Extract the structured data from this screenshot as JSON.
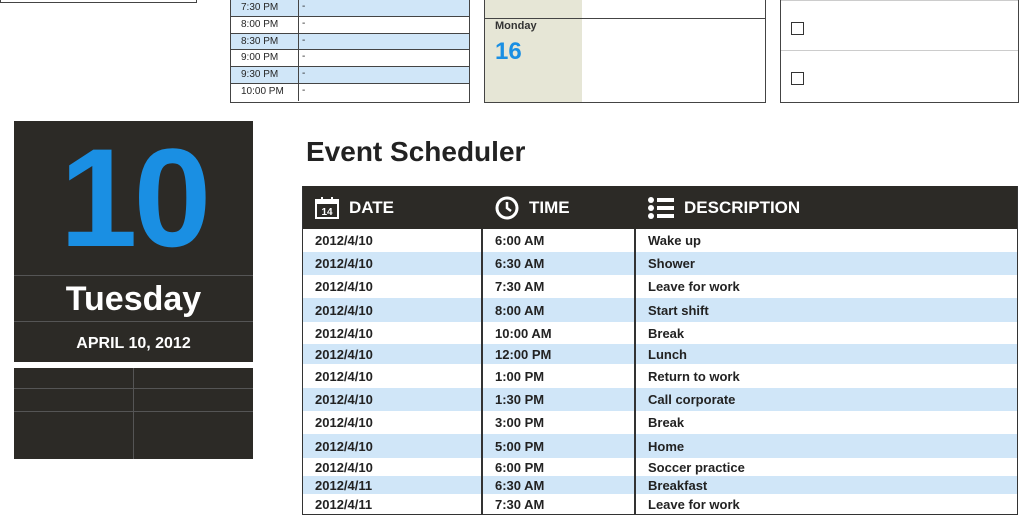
{
  "mini_schedule": [
    {
      "time": "7:30 PM",
      "desc": "-"
    },
    {
      "time": "8:00 PM",
      "desc": "-"
    },
    {
      "time": "8:30 PM",
      "desc": "-"
    },
    {
      "time": "9:00 PM",
      "desc": "-"
    },
    {
      "time": "9:30 PM",
      "desc": "-"
    },
    {
      "time": "10:00 PM",
      "desc": "-"
    }
  ],
  "week": {
    "day": "Monday",
    "date": "16"
  },
  "card": {
    "day_number": "10",
    "weekday": "Tuesday",
    "full_date": "APRIL 10, 2012"
  },
  "scheduler": {
    "title": "Event Scheduler",
    "headers": {
      "date": "DATE",
      "time": "TIME",
      "description": "DESCRIPTION",
      "calendar_icon_text": "14"
    },
    "rows": [
      {
        "date": "2012/4/10",
        "time": "6:00 AM",
        "desc": "Wake up"
      },
      {
        "date": "2012/4/10",
        "time": "6:30 AM",
        "desc": "Shower"
      },
      {
        "date": "2012/4/10",
        "time": "7:30 AM",
        "desc": "Leave for work"
      },
      {
        "date": "2012/4/10",
        "time": "8:00 AM",
        "desc": "Start shift"
      },
      {
        "date": "2012/4/10",
        "time": "10:00 AM",
        "desc": "Break"
      },
      {
        "date": "2012/4/10",
        "time": "12:00 PM",
        "desc": "Lunch"
      },
      {
        "date": "2012/4/10",
        "time": "1:00 PM",
        "desc": "Return to work"
      },
      {
        "date": "2012/4/10",
        "time": "1:30 PM",
        "desc": "Call corporate"
      },
      {
        "date": "2012/4/10",
        "time": "3:00 PM",
        "desc": "Break"
      },
      {
        "date": "2012/4/10",
        "time": "5:00 PM",
        "desc": "Home"
      },
      {
        "date": "2012/4/10",
        "time": "6:00 PM",
        "desc": "Soccer practice"
      },
      {
        "date": "2012/4/11",
        "time": "6:30 AM",
        "desc": "Breakfast"
      },
      {
        "date": "2012/4/11",
        "time": "7:30 AM",
        "desc": "Leave for work"
      }
    ]
  },
  "colors": {
    "accent": "#1a8fe3",
    "dark": "#2c2a26",
    "row_alt": "#d0e6f8",
    "beige": "#e6e6d6"
  }
}
